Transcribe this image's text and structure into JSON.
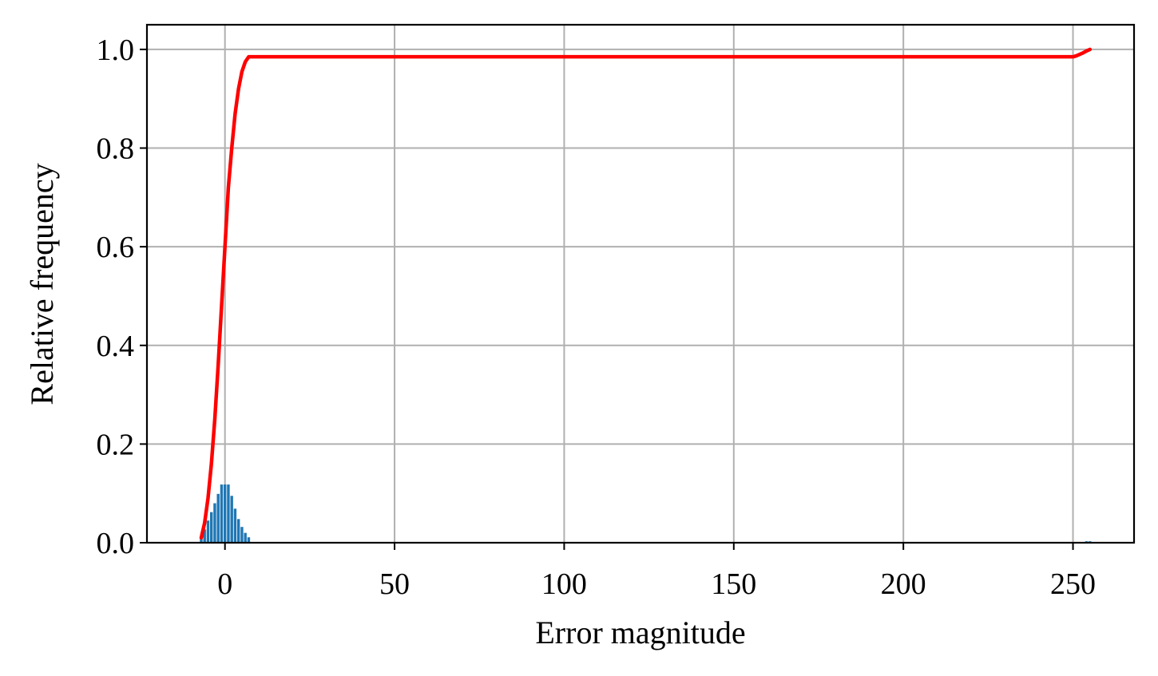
{
  "chart_data": {
    "type": "bar",
    "title": "",
    "xlabel": "Error magnitude",
    "ylabel": "Relative frequency",
    "xlim": [
      -23,
      268
    ],
    "ylim": [
      0,
      1.05
    ],
    "grid": true,
    "x_ticks": [
      0,
      50,
      100,
      150,
      200,
      250
    ],
    "y_ticks": [
      0.0,
      0.2,
      0.4,
      0.6,
      0.8,
      1.0
    ],
    "x_tick_labels": [
      "0",
      "50",
      "100",
      "150",
      "200",
      "250"
    ],
    "y_tick_labels": [
      "0.0",
      "0.2",
      "0.4",
      "0.6",
      "0.8",
      "1.0"
    ],
    "histogram": {
      "color": "#1f77b4",
      "x": [
        -7,
        -6,
        -5,
        -4,
        -3,
        -2,
        -1,
        0,
        1,
        2,
        3,
        4,
        5,
        6,
        7,
        254,
        255
      ],
      "values": [
        0.013,
        0.027,
        0.045,
        0.062,
        0.08,
        0.099,
        0.118,
        0.118,
        0.118,
        0.095,
        0.069,
        0.048,
        0.032,
        0.02,
        0.011,
        0.003,
        0.003
      ]
    },
    "cdf": {
      "color": "#ff0000",
      "x": [
        -7,
        -6,
        -5,
        -4,
        -3,
        -2,
        -1,
        0,
        1,
        2,
        3,
        4,
        5,
        6,
        7,
        250,
        251,
        252,
        253,
        254,
        255
      ],
      "values": [
        0.01,
        0.04,
        0.09,
        0.16,
        0.25,
        0.36,
        0.48,
        0.6,
        0.72,
        0.8,
        0.87,
        0.92,
        0.955,
        0.975,
        0.985,
        0.985,
        0.987,
        0.99,
        0.993,
        0.997,
        1.0
      ]
    }
  }
}
